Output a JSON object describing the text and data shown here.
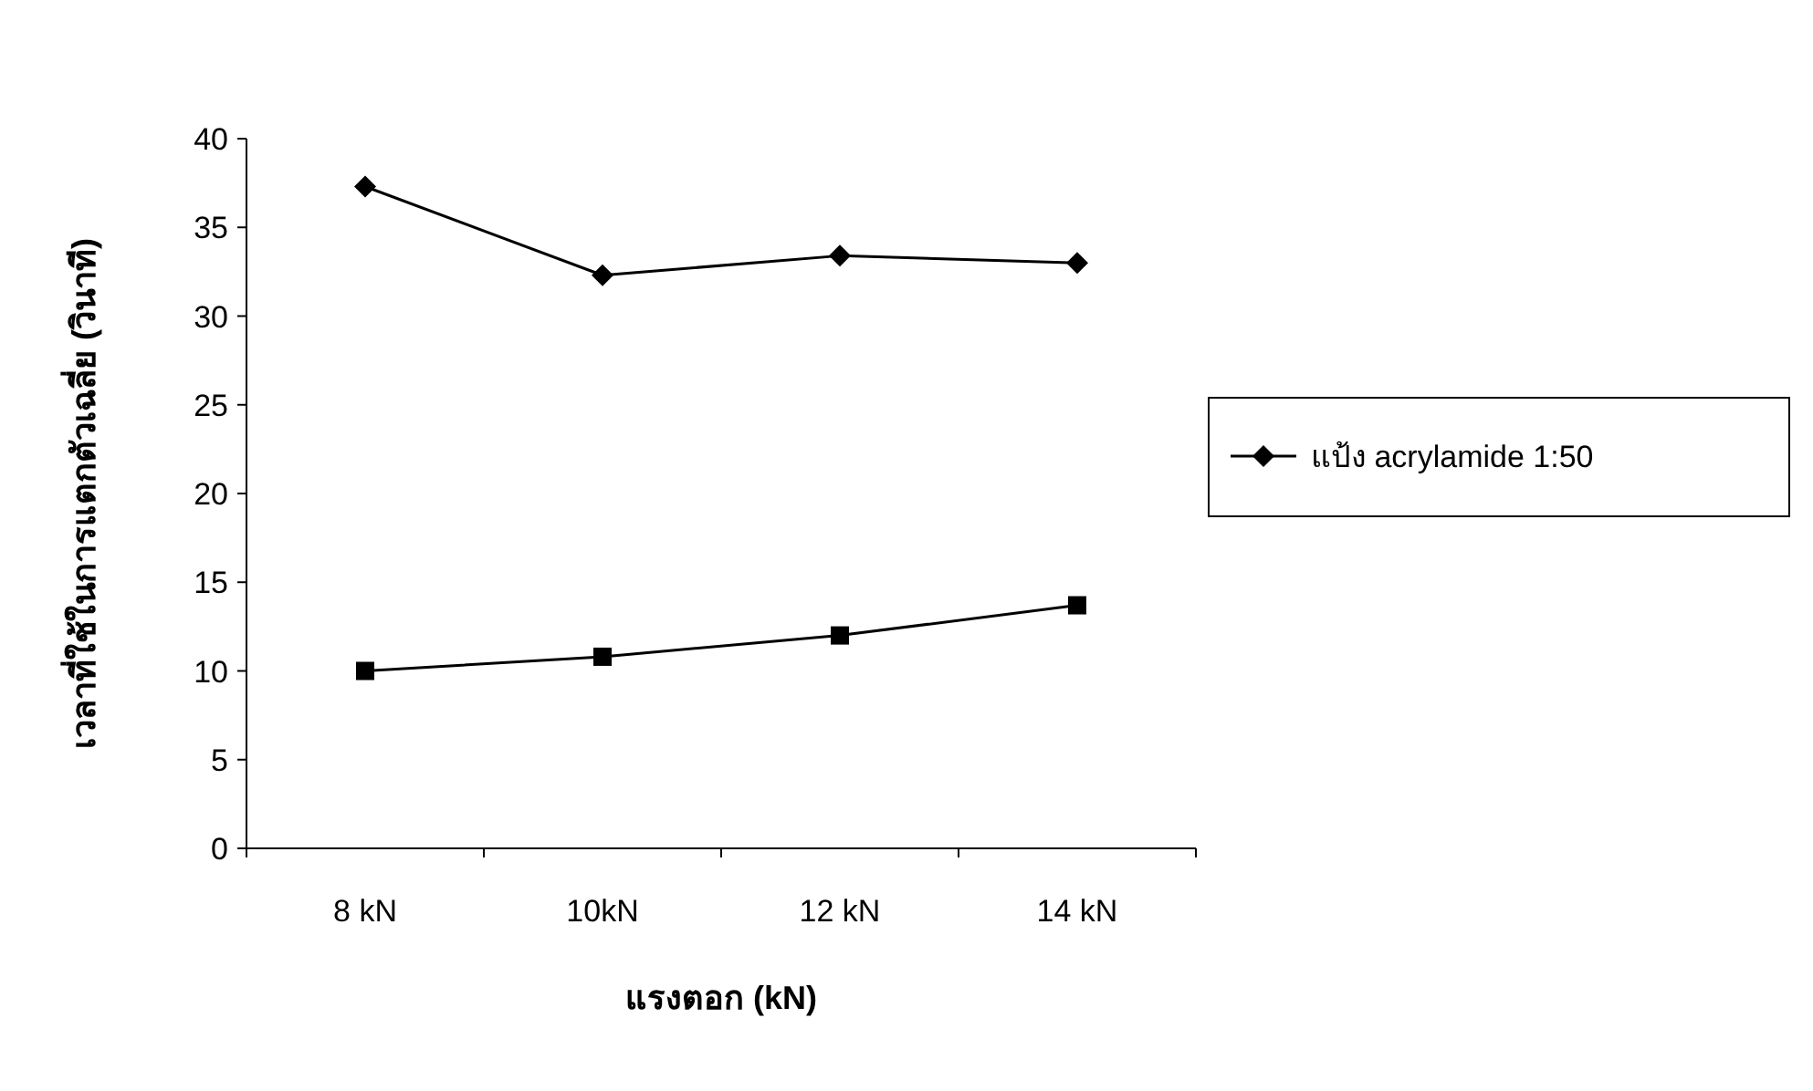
{
  "chart_data": {
    "type": "line",
    "xlabel": "แรงตอก (kN)",
    "ylabel": "เวลาที่ใช้ในการแตกตัวเฉลี่ย (วินาที)",
    "categories": [
      "8 kN",
      "10kN",
      "12 kN",
      "14 kN"
    ],
    "series": [
      {
        "name": "แป้ง acrylamide 1:50",
        "color": "#000000",
        "marker": "diamond",
        "values": [
          37.3,
          32.3,
          33.4,
          33.0
        ]
      },
      {
        "color": "#000000",
        "marker": "square",
        "values": [
          10.0,
          10.8,
          12.0,
          13.7
        ]
      }
    ],
    "ylim": [
      0,
      40
    ],
    "yticks": [
      0,
      5,
      10,
      15,
      20,
      25,
      30,
      35,
      40
    ],
    "grid": false,
    "legend": "right"
  }
}
